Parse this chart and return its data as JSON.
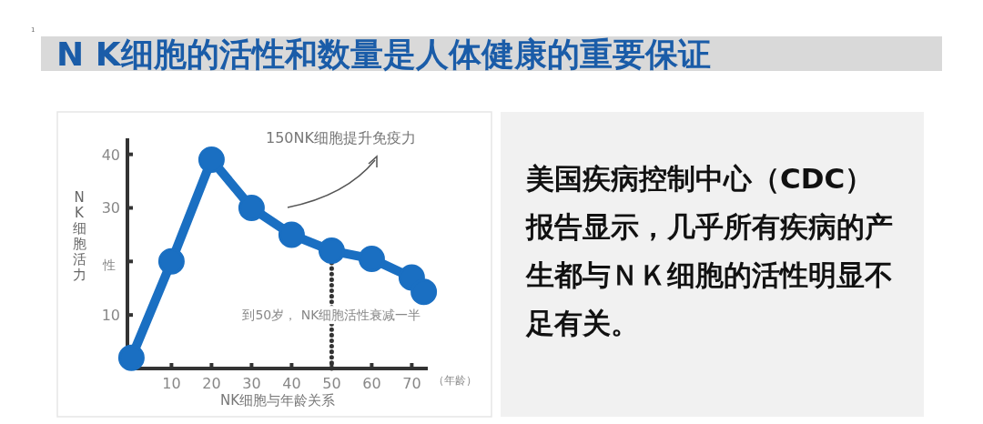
{
  "chart_data": {
    "type": "line",
    "title": "N K细胞的活性和数量是人体健康的重要保证",
    "xlabel": "NK细胞与年龄关系",
    "ylabel": "NK细胞活力",
    "x": [
      0,
      10,
      20,
      30,
      40,
      50,
      60,
      70,
      73
    ],
    "series": [
      {
        "color": "#1a6fc2",
        "values": [
          2,
          20,
          39,
          30,
          25,
          22,
          20.5,
          17,
          14.3
        ]
      }
    ],
    "xlim": [
      -1,
      74
    ],
    "ylim": [
      0,
      43
    ],
    "xticks": [
      10,
      20,
      30,
      40,
      50,
      60,
      70
    ],
    "yticks": [
      10,
      {
        "value": 20,
        "label": null
      },
      30,
      40
    ],
    "marker": "circle",
    "grid": false,
    "ref_lines": [
      {
        "axis": "x",
        "value": 50,
        "label": "到50岁， NK细胞活性衰减一半",
        "line_style": "dotted",
        "color": "#333333"
      }
    ],
    "annotations": [
      "150NK细胞提升免疫力",
      "性",
      "（年龄）",
      "1",
      "美国疾病控制中心（CDC）报告显示，几乎所有疾病的产生都与ＮＫ细胞的活性明显不足有关。"
    ]
  }
}
